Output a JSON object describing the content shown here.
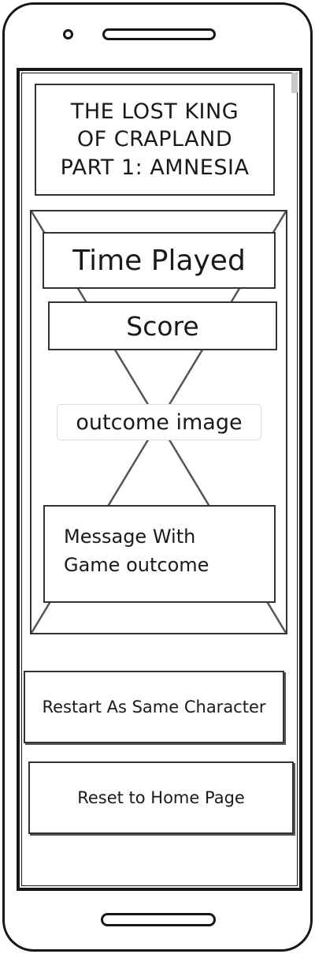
{
  "title": {
    "line1": "THE LOST KING",
    "line2": "OF CRAPLAND",
    "line3": "PART 1: AMNESIA"
  },
  "stats": {
    "time_played": "Time Played",
    "score": "Score"
  },
  "outcome": {
    "image_placeholder": "outcome image",
    "message_line1": "Message With",
    "message_line2": "Game outcome"
  },
  "buttons": {
    "restart": "Restart As Same Character",
    "reset_home": "Reset to Home Page"
  },
  "icons": {
    "image_placeholder": "crossed-box-image-icon"
  }
}
